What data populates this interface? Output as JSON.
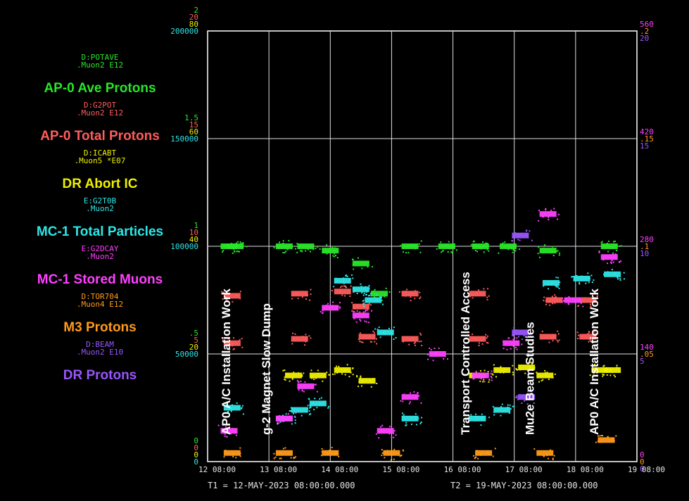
{
  "chart_data": {
    "type": "scatter",
    "x_range": [
      "12-MAY-2023 08:00",
      "19-MAY-2023 08:00"
    ],
    "x_tick_labels": [
      "12 08:00",
      "13 08:00",
      "14 08:00",
      "15 08:00",
      "16 08:00",
      "17 08:00",
      "18 08:00",
      "19 08:00"
    ],
    "time_range": {
      "t1": "T1 = 12-MAY-2023 08:00:00.000",
      "t2": "T2 = 19-MAY-2023 08:00:00.000"
    },
    "left_axes": [
      {
        "color": "#28e628",
        "ticks": [
          "2",
          "1.5",
          "1",
          ".5",
          "0"
        ]
      },
      {
        "color": "#ff5c5c",
        "ticks": [
          "20",
          "15",
          "10",
          "5",
          "0"
        ]
      },
      {
        "color": "#f0f000",
        "ticks": [
          "80",
          "60",
          "40",
          "20",
          "0"
        ]
      },
      {
        "color": "#2ee6e6",
        "ticks": [
          "200000",
          "150000",
          "100000",
          "50000",
          "0"
        ]
      }
    ],
    "right_axes": [
      {
        "color": "#ff40ff",
        "ticks": [
          "560",
          "420",
          "280",
          "140",
          "0"
        ]
      },
      {
        "color": "#ff9a1a",
        "ticks": [
          ".2",
          ".15",
          ".1",
          ".05",
          "0"
        ]
      },
      {
        "color": "#9955ff",
        "ticks": [
          "20",
          "15",
          "10",
          "5",
          "0"
        ]
      }
    ],
    "series": [
      {
        "name": "AP-0 Ave Protons",
        "device": "D:POTAVE",
        "units": ".Muon2  E12",
        "color": "#28e628",
        "points": [
          [
            0.35,
            1.0
          ],
          [
            0.45,
            1.0
          ],
          [
            1.25,
            1.0
          ],
          [
            1.6,
            1.0
          ],
          [
            2.0,
            0.98
          ],
          [
            2.5,
            0.92
          ],
          [
            2.8,
            0.78
          ],
          [
            3.3,
            1.0
          ],
          [
            3.9,
            1.0
          ],
          [
            4.45,
            1.0
          ],
          [
            4.9,
            1.0
          ],
          [
            5.55,
            0.98
          ],
          [
            6.55,
            1.0
          ]
        ]
      },
      {
        "name": "AP-0 Total Protons",
        "device": "D:G2POT",
        "units": ".Muon2  E12",
        "color": "#ff5c5c",
        "points": [
          [
            0.4,
            7.7
          ],
          [
            0.4,
            5.5
          ],
          [
            1.5,
            7.8
          ],
          [
            1.5,
            5.7
          ],
          [
            2.2,
            7.9
          ],
          [
            2.5,
            7.2
          ],
          [
            2.6,
            5.8
          ],
          [
            3.3,
            7.8
          ],
          [
            3.3,
            5.7
          ],
          [
            4.4,
            7.8
          ],
          [
            4.4,
            5.7
          ],
          [
            5.55,
            5.8
          ],
          [
            5.65,
            7.5
          ],
          [
            6.2,
            7.5
          ],
          [
            6.2,
            5.8
          ]
        ]
      },
      {
        "name": "DR Abort IC",
        "device": "D:ICABT",
        "units": ".Muon5  *E07",
        "color": "#f0f000",
        "points": [
          [
            1.4,
            16
          ],
          [
            1.8,
            16
          ],
          [
            2.2,
            17
          ],
          [
            2.6,
            15
          ],
          [
            4.4,
            16
          ],
          [
            4.8,
            17
          ],
          [
            5.2,
            17.5
          ],
          [
            5.5,
            16
          ],
          [
            6.4,
            17
          ],
          [
            6.6,
            17
          ]
        ]
      },
      {
        "name": "MC-1 Total Particles",
        "device": "E:G2T0B",
        "units": ".Muon2",
        "color": "#2ee6e6",
        "points": [
          [
            0.4,
            25000
          ],
          [
            1.25,
            20000
          ],
          [
            1.5,
            24000
          ],
          [
            1.8,
            27000
          ],
          [
            2.2,
            84000
          ],
          [
            2.5,
            80000
          ],
          [
            2.7,
            75000
          ],
          [
            2.9,
            60000
          ],
          [
            3.3,
            20000
          ],
          [
            4.4,
            20000
          ],
          [
            4.8,
            24000
          ],
          [
            5.6,
            83000
          ],
          [
            6.1,
            85000
          ],
          [
            6.6,
            87000
          ]
        ]
      },
      {
        "name": "MC-1 Stored Muons",
        "device": "E:G2DCAY",
        "units": ".Muon2",
        "color": "#ff40ff",
        "points": [
          [
            0.35,
            40
          ],
          [
            1.25,
            56
          ],
          [
            1.6,
            98
          ],
          [
            2.0,
            200
          ],
          [
            2.5,
            190
          ],
          [
            2.9,
            40
          ],
          [
            3.3,
            84
          ],
          [
            3.75,
            140
          ],
          [
            4.45,
            112
          ],
          [
            4.95,
            154
          ],
          [
            5.55,
            322
          ],
          [
            5.95,
            210
          ],
          [
            6.55,
            266
          ]
        ]
      },
      {
        "name": "M3 Protons",
        "device": "D:TOR704",
        "units": ".Muon4  E12",
        "color": "#ff9a1a",
        "points": [
          [
            0.4,
            0.004
          ],
          [
            1.25,
            0.004
          ],
          [
            2.0,
            0.004
          ],
          [
            3.0,
            0.004
          ],
          [
            4.5,
            0.004
          ],
          [
            5.5,
            0.004
          ],
          [
            6.5,
            0.01
          ]
        ]
      },
      {
        "name": "DR Protons",
        "device": "D:BEAM",
        "units": ".Muon2  E10",
        "color": "#9955ff",
        "points": [
          [
            5.1,
            10.5
          ],
          [
            5.1,
            6.0
          ],
          [
            5.2,
            3.0
          ]
        ]
      }
    ],
    "annotations": [
      {
        "text": "AP0 A/C Installation Work",
        "x": 0.3
      },
      {
        "text": "g-2 Magnet Slow Dump",
        "x": 0.95
      },
      {
        "text": "Transport Controlled Access",
        "x": 4.2
      },
      {
        "text": "Mu2e Beam Studies",
        "x": 5.25
      },
      {
        "text": "AP0 A/C Installation Work",
        "x": 6.3
      }
    ]
  }
}
